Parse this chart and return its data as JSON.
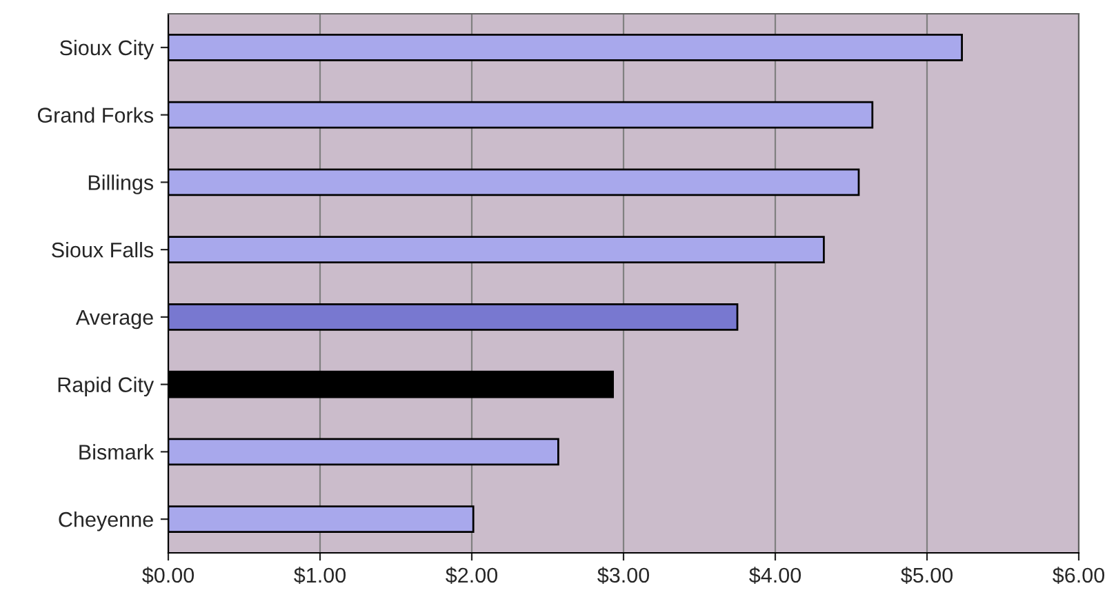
{
  "chart_data": {
    "type": "bar",
    "orientation": "horizontal",
    "categories": [
      "Sioux City",
      "Grand Forks",
      "Billings",
      "Sioux Falls",
      "Average",
      "Rapid City",
      "Bismark",
      "Cheyenne"
    ],
    "values": [
      5.23,
      4.64,
      4.55,
      4.32,
      3.75,
      2.93,
      2.57,
      2.01
    ],
    "colors": [
      "#a8a8ec",
      "#a8a8ec",
      "#a8a8ec",
      "#a8a8ec",
      "#7878d0",
      "#000000",
      "#a8a8ec",
      "#a8a8ec"
    ],
    "xlim": [
      0,
      6
    ],
    "xticks": [
      {
        "value": 0,
        "label": "$0.00"
      },
      {
        "value": 1,
        "label": "$1.00"
      },
      {
        "value": 2,
        "label": "$2.00"
      },
      {
        "value": 3,
        "label": "$3.00"
      },
      {
        "value": 4,
        "label": "$4.00"
      },
      {
        "value": 5,
        "label": "$5.00"
      },
      {
        "value": 6,
        "label": "$6.00"
      }
    ],
    "grid": "x"
  }
}
